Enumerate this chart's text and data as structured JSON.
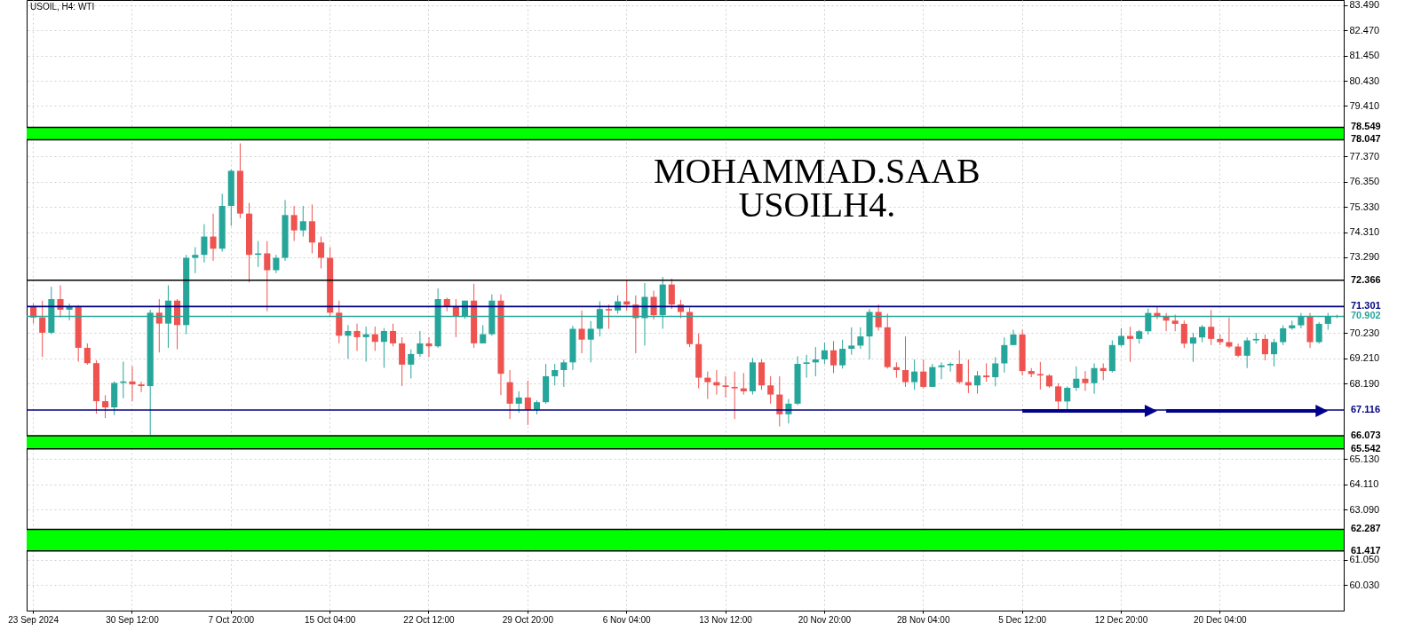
{
  "chart_data": {
    "type": "candlestick",
    "title": "USOIL, H4:  WTI",
    "annotations": [
      "MOHAMMAD.SAAB",
      "USOILH4."
    ],
    "categories": [
      "23 Sep 2024",
      null,
      null,
      null,
      null,
      null,
      null,
      null,
      null,
      null,
      null,
      "30 Sep 12:00",
      null,
      null,
      null,
      null,
      null,
      null,
      null,
      null,
      null,
      null,
      "7 Oct 20:00",
      null,
      null,
      null,
      null,
      null,
      null,
      null,
      null,
      null,
      null,
      "15 Oct 04:00",
      null,
      null,
      null,
      null,
      null,
      null,
      null,
      null,
      null,
      null,
      "22 Oct 12:00",
      null,
      null,
      null,
      null,
      null,
      null,
      null,
      null,
      null,
      null,
      "29 Oct 20:00",
      null,
      null,
      null,
      null,
      null,
      null,
      null,
      null,
      null,
      null,
      "6 Nov 04:00",
      null,
      null,
      null,
      null,
      null,
      null,
      null,
      null,
      null,
      null,
      "13 Nov 12:00",
      null,
      null,
      null,
      null,
      null,
      null,
      null,
      null,
      null,
      null,
      "20 Nov 20:00",
      null,
      null,
      null,
      null,
      null,
      null,
      null,
      null,
      null,
      null,
      "28 Nov 04:00",
      null,
      null,
      null,
      null,
      null,
      null,
      null,
      null,
      null,
      null,
      "5 Dec 12:00",
      null,
      null,
      null,
      null,
      null,
      null,
      null,
      null,
      null,
      null,
      "12 Dec 20:00",
      null,
      null,
      null,
      null,
      null,
      null,
      null,
      null,
      null,
      null,
      "20 Dec 04:00",
      null,
      null,
      null,
      null,
      null,
      null,
      null,
      null,
      null,
      null,
      null,
      null,
      null
    ],
    "ohlc": [
      [
        71.29,
        71.42,
        70.61,
        70.86
      ],
      [
        70.86,
        71.54,
        69.26,
        70.24
      ],
      [
        70.24,
        72.1,
        70.18,
        71.6
      ],
      [
        71.6,
        72.16,
        70.86,
        71.17
      ],
      [
        71.17,
        71.42,
        70.74,
        71.29
      ],
      [
        71.29,
        71.36,
        69.07,
        69.63
      ],
      [
        69.63,
        69.81,
        68.95,
        69.01
      ],
      [
        69.01,
        69.13,
        66.97,
        67.47
      ],
      [
        67.47,
        67.71,
        66.79,
        67.22
      ],
      [
        67.22,
        68.27,
        66.91,
        68.21
      ],
      [
        68.21,
        69.07,
        67.59,
        68.27
      ],
      [
        68.27,
        68.89,
        67.47,
        68.15
      ],
      [
        68.15,
        68.27,
        67.84,
        68.08
      ],
      [
        68.08,
        71.17,
        66.11,
        71.05
      ],
      [
        71.05,
        71.6,
        69.44,
        70.61
      ],
      [
        70.61,
        72.16,
        69.63,
        71.54
      ],
      [
        71.54,
        71.6,
        69.57,
        70.55
      ],
      [
        70.55,
        73.39,
        70.18,
        73.27
      ],
      [
        73.27,
        73.7,
        72.65,
        73.39
      ],
      [
        73.39,
        74.63,
        73.08,
        74.13
      ],
      [
        74.13,
        75.06,
        73.15,
        73.64
      ],
      [
        73.64,
        75.86,
        73.52,
        75.37
      ],
      [
        75.37,
        76.85,
        74.56,
        76.79
      ],
      [
        76.79,
        77.9,
        74.87,
        75.06
      ],
      [
        75.06,
        75.49,
        72.28,
        73.39
      ],
      [
        73.39,
        73.95,
        72.9,
        73.45
      ],
      [
        73.45,
        73.95,
        71.11,
        72.77
      ],
      [
        72.77,
        73.39,
        72.65,
        73.27
      ],
      [
        73.27,
        75.61,
        73.15,
        75.0
      ],
      [
        75.0,
        75.37,
        73.95,
        74.38
      ],
      [
        74.38,
        75.37,
        74.13,
        74.75
      ],
      [
        74.75,
        75.43,
        73.45,
        73.89
      ],
      [
        73.89,
        74.13,
        72.84,
        73.27
      ],
      [
        73.27,
        73.7,
        70.92,
        71.05
      ],
      [
        71.05,
        71.54,
        69.81,
        70.12
      ],
      [
        70.12,
        70.55,
        69.19,
        70.31
      ],
      [
        70.31,
        70.61,
        69.5,
        70.06
      ],
      [
        70.06,
        70.49,
        69.07,
        70.18
      ],
      [
        70.18,
        70.49,
        69.5,
        69.87
      ],
      [
        69.87,
        70.43,
        68.82,
        70.31
      ],
      [
        70.31,
        70.61,
        69.69,
        69.81
      ],
      [
        69.81,
        70.06,
        68.08,
        68.95
      ],
      [
        68.95,
        69.57,
        68.39,
        69.38
      ],
      [
        69.38,
        70.31,
        69.26,
        69.81
      ],
      [
        69.81,
        70.06,
        69.26,
        69.69
      ],
      [
        69.69,
        72.03,
        69.63,
        71.6
      ],
      [
        71.6,
        71.66,
        71.11,
        71.29
      ],
      [
        71.29,
        71.6,
        70.06,
        70.92
      ],
      [
        70.92,
        71.54,
        70.8,
        71.54
      ],
      [
        71.54,
        72.22,
        69.63,
        69.81
      ],
      [
        69.81,
        70.55,
        69.81,
        70.18
      ],
      [
        70.18,
        71.79,
        70.12,
        71.54
      ],
      [
        71.54,
        71.79,
        67.71,
        68.58
      ],
      [
        68.24,
        68.73,
        66.75,
        67.37
      ],
      [
        67.37,
        67.87,
        67.0,
        67.62
      ],
      [
        67.62,
        68.3,
        66.51,
        67.13
      ],
      [
        67.13,
        67.5,
        66.94,
        67.43
      ],
      [
        67.43,
        68.98,
        67.37,
        68.48
      ],
      [
        68.48,
        68.98,
        68.11,
        68.73
      ],
      [
        68.73,
        69.16,
        68.05,
        69.04
      ],
      [
        69.04,
        70.52,
        68.73,
        70.4
      ],
      [
        70.4,
        71.14,
        69.41,
        69.96
      ],
      [
        69.96,
        70.71,
        69.04,
        70.4
      ],
      [
        70.4,
        71.51,
        70.09,
        71.2
      ],
      [
        71.2,
        71.38,
        70.4,
        71.14
      ],
      [
        71.14,
        71.75,
        71.01,
        71.51
      ],
      [
        71.51,
        72.37,
        71.14,
        71.38
      ],
      [
        71.38,
        71.75,
        69.41,
        70.83
      ],
      [
        70.83,
        72.25,
        69.72,
        71.69
      ],
      [
        71.69,
        71.94,
        70.77,
        70.95
      ],
      [
        70.95,
        72.5,
        70.4,
        72.19
      ],
      [
        72.19,
        72.43,
        71.2,
        71.38
      ],
      [
        71.38,
        71.57,
        70.83,
        71.08
      ],
      [
        71.08,
        71.26,
        69.66,
        69.78
      ],
      [
        69.78,
        70.21,
        67.99,
        68.42
      ],
      [
        68.42,
        68.67,
        67.56,
        68.24
      ],
      [
        68.24,
        68.73,
        67.74,
        68.11
      ],
      [
        68.11,
        68.48,
        67.62,
        68.05
      ],
      [
        68.05,
        68.67,
        66.75,
        67.99
      ],
      [
        67.99,
        68.61,
        67.74,
        67.87
      ],
      [
        67.87,
        69.22,
        67.74,
        69.04
      ],
      [
        69.04,
        69.16,
        67.93,
        68.11
      ],
      [
        68.11,
        68.48,
        67.37,
        67.74
      ],
      [
        67.74,
        68.48,
        66.45,
        66.94
      ],
      [
        66.94,
        67.56,
        66.57,
        67.37
      ],
      [
        67.37,
        69.29,
        67.31,
        68.98
      ],
      [
        68.98,
        69.35,
        68.42,
        69.04
      ],
      [
        69.04,
        69.66,
        68.48,
        69.16
      ],
      [
        69.16,
        69.84,
        68.98,
        69.53
      ],
      [
        69.53,
        69.9,
        68.61,
        68.92
      ],
      [
        68.92,
        69.96,
        68.79,
        69.59
      ],
      [
        69.59,
        70.46,
        69.35,
        69.72
      ],
      [
        69.72,
        70.46,
        69.59,
        70.09
      ],
      [
        70.09,
        71.2,
        69.16,
        71.08
      ],
      [
        71.08,
        71.38,
        70.33,
        70.46
      ],
      [
        70.46,
        71.01,
        68.79,
        68.85
      ],
      [
        68.85,
        69.04,
        68.42,
        68.73
      ],
      [
        68.73,
        70.09,
        68.05,
        68.24
      ],
      [
        68.24,
        69.16,
        67.93,
        68.67
      ],
      [
        68.67,
        69.16,
        67.99,
        68.05
      ],
      [
        68.05,
        68.98,
        68.05,
        68.85
      ],
      [
        68.85,
        69.04,
        68.36,
        68.92
      ],
      [
        68.92,
        69.04,
        68.67,
        68.98
      ],
      [
        68.98,
        69.53,
        68.17,
        68.24
      ],
      [
        68.24,
        69.16,
        67.8,
        68.11
      ],
      [
        68.11,
        68.69,
        67.77,
        68.51
      ],
      [
        68.51,
        69.0,
        68.26,
        68.44
      ],
      [
        68.44,
        69.25,
        68.07,
        69.0
      ],
      [
        69.0,
        70.05,
        68.63,
        69.74
      ],
      [
        69.74,
        70.36,
        69.74,
        70.17
      ],
      [
        70.17,
        70.36,
        68.51,
        68.69
      ],
      [
        68.69,
        68.81,
        68.44,
        68.57
      ],
      [
        68.57,
        69.06,
        67.95,
        68.51
      ],
      [
        68.51,
        68.57,
        68.01,
        68.07
      ],
      [
        68.07,
        68.2,
        67.15,
        67.46
      ],
      [
        67.46,
        68.07,
        67.15,
        68.01
      ],
      [
        68.01,
        68.88,
        67.89,
        68.38
      ],
      [
        68.38,
        68.69,
        67.89,
        68.2
      ],
      [
        68.2,
        69.0,
        67.77,
        68.81
      ],
      [
        68.81,
        69.0,
        68.32,
        68.69
      ],
      [
        68.69,
        69.93,
        68.63,
        69.74
      ],
      [
        69.74,
        70.42,
        69.68,
        70.11
      ],
      [
        70.11,
        70.48,
        69.06,
        69.99
      ],
      [
        69.99,
        70.36,
        69.8,
        70.3
      ],
      [
        70.3,
        71.22,
        70.17,
        71.04
      ],
      [
        71.04,
        71.28,
        70.79,
        70.91
      ],
      [
        70.91,
        71.04,
        70.3,
        70.73
      ],
      [
        70.73,
        70.97,
        70.3,
        70.6
      ],
      [
        70.6,
        70.73,
        69.62,
        69.8
      ],
      [
        69.8,
        70.23,
        69.06,
        70.05
      ],
      [
        70.05,
        70.55,
        69.86,
        70.48
      ],
      [
        70.48,
        71.16,
        69.74,
        69.99
      ],
      [
        69.99,
        70.17,
        69.74,
        69.86
      ],
      [
        69.86,
        70.85,
        69.62,
        69.68
      ],
      [
        69.68,
        69.8,
        69.25,
        69.31
      ],
      [
        69.31,
        70.05,
        68.81,
        69.93
      ],
      [
        69.93,
        70.23,
        69.8,
        69.99
      ],
      [
        69.99,
        70.17,
        69.12,
        69.37
      ],
      [
        69.37,
        69.99,
        68.88,
        69.86
      ],
      [
        69.86,
        70.54,
        69.74,
        70.42
      ],
      [
        70.42,
        70.73,
        70.36,
        70.54
      ],
      [
        70.54,
        71.04,
        70.42,
        70.91
      ],
      [
        70.91,
        71.04,
        69.62,
        69.86
      ],
      [
        69.86,
        70.67,
        69.8,
        70.6
      ],
      [
        70.6,
        71.04,
        70.36,
        70.91
      ],
      [
        70.91,
        70.97,
        70.83,
        70.9
      ]
    ],
    "colors": [
      "#ef5350",
      "#ef5350",
      "#26a69a",
      "#ef5350",
      "#26a69a",
      "#ef5350",
      "#ef5350",
      "#ef5350",
      "#ef5350",
      "#26a69a",
      "#26a69a",
      "#ef5350",
      "#ef5350",
      "#26a69a",
      "#ef5350",
      "#26a69a",
      "#ef5350",
      "#26a69a",
      "#26a69a",
      "#26a69a",
      "#ef5350",
      "#26a69a",
      "#26a69a",
      "#ef5350",
      "#ef5350",
      "#26a69a",
      "#ef5350",
      "#26a69a",
      "#26a69a",
      "#ef5350",
      "#26a69a",
      "#ef5350",
      "#ef5350",
      "#ef5350",
      "#ef5350",
      "#26a69a",
      "#ef5350",
      "#26a69a",
      "#ef5350",
      "#26a69a",
      "#ef5350",
      "#ef5350",
      "#26a69a",
      "#26a69a",
      "#ef5350",
      "#26a69a",
      "#ef5350",
      "#ef5350",
      "#26a69a",
      "#ef5350",
      "#26a69a",
      "#26a69a",
      "#ef5350",
      "#ef5350",
      "#26a69a",
      "#ef5350",
      "#26a69a",
      "#26a69a",
      "#26a69a",
      "#26a69a",
      "#26a69a",
      "#ef5350",
      "#26a69a",
      "#26a69a",
      "#ef5350",
      "#26a69a",
      "#ef5350",
      "#ef5350",
      "#26a69a",
      "#ef5350",
      "#26a69a",
      "#ef5350",
      "#ef5350",
      "#ef5350",
      "#ef5350",
      "#ef5350",
      "#ef5350",
      "#ef5350",
      "#ef5350",
      "#ef5350",
      "#26a69a",
      "#ef5350",
      "#ef5350",
      "#ef5350",
      "#26a69a",
      "#26a69a",
      "#26a69a",
      "#26a69a",
      "#26a69a",
      "#ef5350",
      "#26a69a",
      "#26a69a",
      "#26a69a",
      "#26a69a",
      "#ef5350",
      "#ef5350",
      "#ef5350",
      "#ef5350",
      "#26a69a",
      "#ef5350",
      "#26a69a",
      "#26a69a",
      "#26a69a",
      "#ef5350",
      "#ef5350",
      "#26a69a",
      "#ef5350",
      "#26a69a",
      "#26a69a",
      "#26a69a",
      "#ef5350",
      "#ef5350",
      "#ef5350",
      "#ef5350",
      "#ef5350",
      "#26a69a",
      "#26a69a",
      "#ef5350",
      "#26a69a",
      "#ef5350",
      "#26a69a",
      "#26a69a",
      "#ef5350",
      "#26a69a",
      "#26a69a",
      "#ef5350",
      "#ef5350",
      "#ef5350",
      "#ef5350",
      "#26a69a",
      "#26a69a",
      "#ef5350",
      "#ef5350",
      "#ef5350",
      "#ef5350",
      "#26a69a",
      "#26a69a",
      "#ef5350",
      "#26a69a",
      "#26a69a",
      "#26a69a",
      "#26a69a",
      "#ef5350",
      "#26a69a",
      "#26a69a",
      "#ef5350"
    ],
    "ylim": [
      59.0,
      83.7
    ],
    "yticks": [
      {
        "value": 83.49,
        "label": "83.490"
      },
      {
        "value": 82.47,
        "label": "82.470"
      },
      {
        "value": 81.45,
        "label": "81.450"
      },
      {
        "value": 80.43,
        "label": "80.430"
      },
      {
        "value": 79.41,
        "label": "79.410"
      },
      {
        "value": 77.37,
        "label": "77.370"
      },
      {
        "value": 76.35,
        "label": "76.350"
      },
      {
        "value": 75.33,
        "label": "75.330"
      },
      {
        "value": 74.31,
        "label": "74.310"
      },
      {
        "value": 73.29,
        "label": "73.290"
      },
      {
        "value": 70.23,
        "label": "70.230"
      },
      {
        "value": 69.21,
        "label": "69.210"
      },
      {
        "value": 68.19,
        "label": "68.190"
      },
      {
        "value": 65.13,
        "label": "65.130"
      },
      {
        "value": 64.11,
        "label": "64.110"
      },
      {
        "value": 63.09,
        "label": "63.090"
      },
      {
        "value": 61.05,
        "label": "61.050"
      },
      {
        "value": 60.03,
        "label": "60.030"
      }
    ],
    "ref_lines": [
      {
        "axis": "y",
        "value": 78.549,
        "label": "78.549",
        "color": "#000000"
      },
      {
        "axis": "y",
        "value": 78.047,
        "label": "78.047",
        "color": "#000000"
      },
      {
        "axis": "y",
        "value": 72.366,
        "label": "72.366",
        "color": "#000000"
      },
      {
        "axis": "y",
        "value": 71.301,
        "label": "71.301",
        "color": "#000080"
      },
      {
        "axis": "y",
        "value": 70.902,
        "label": "70.902",
        "color": "#26a69a"
      },
      {
        "axis": "y",
        "value": 67.116,
        "label": "67.116",
        "color": "#000080"
      },
      {
        "axis": "y",
        "value": 66.073,
        "label": "66.073",
        "color": "#000000"
      },
      {
        "axis": "y",
        "value": 65.542,
        "label": "65.542",
        "color": "#000000"
      },
      {
        "axis": "y",
        "value": 62.287,
        "label": "62.287",
        "color": "#000000"
      },
      {
        "axis": "y",
        "value": 61.417,
        "label": "61.417",
        "color": "#000000"
      }
    ],
    "bands": [
      {
        "axis": "y",
        "from": 78.047,
        "to": 78.549,
        "color": "#00ff00"
      },
      {
        "axis": "y",
        "from": 65.542,
        "to": 66.073,
        "color": "#00ff00"
      },
      {
        "axis": "y",
        "from": 61.417,
        "to": 62.287,
        "color": "#00ff00"
      }
    ],
    "grid": true
  }
}
